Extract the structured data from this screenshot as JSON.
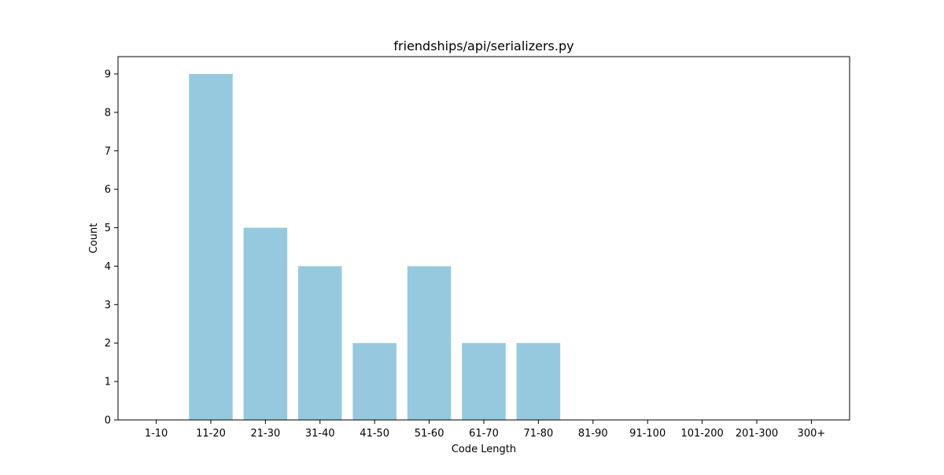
{
  "chart_data": {
    "type": "bar",
    "title": "friendships/api/serializers.py",
    "xlabel": "Code Length",
    "ylabel": "Count",
    "categories": [
      "1-10",
      "11-20",
      "21-30",
      "31-40",
      "41-50",
      "51-60",
      "61-70",
      "71-80",
      "81-90",
      "91-100",
      "101-200",
      "201-300",
      "300+"
    ],
    "values": [
      0,
      9,
      5,
      4,
      2,
      4,
      2,
      2,
      0,
      0,
      0,
      0,
      0
    ],
    "ylim": [
      0,
      9.45
    ],
    "yticks": [
      0,
      1,
      2,
      3,
      4,
      5,
      6,
      7,
      8,
      9
    ],
    "bar_color": "#96c9de",
    "grid": false,
    "legend": "none"
  }
}
